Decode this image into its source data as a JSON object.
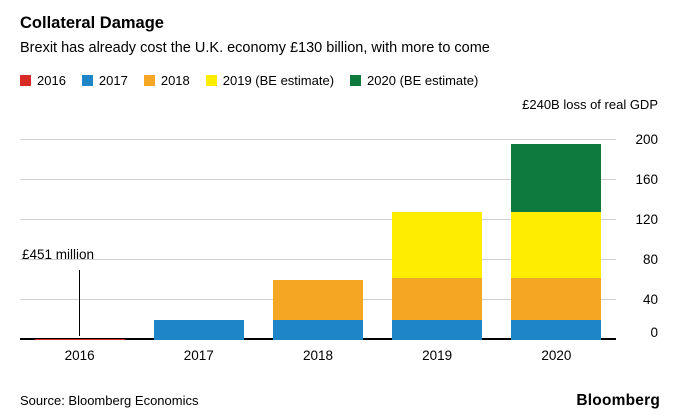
{
  "header": {
    "title": "Collateral Damage",
    "subtitle": "Brexit has already cost the U.K. economy £130 billion, with more to come"
  },
  "annotations": {
    "callout_label": "£451 million"
  },
  "footer": {
    "source": "Source: Bloomberg Economics",
    "logo": "Bloomberg"
  },
  "chart_data": {
    "type": "bar",
    "stacked": true,
    "title": "Collateral Damage",
    "subtitle": "Brexit has already cost the U.K. economy £130 billion, with more to come",
    "categories": [
      "2016",
      "2017",
      "2018",
      "2019",
      "2020"
    ],
    "series": [
      {
        "name": "2016",
        "color": "#d92b26",
        "values": [
          0.451,
          0,
          0,
          0,
          0
        ]
      },
      {
        "name": "2017",
        "color": "#1e86c8",
        "values": [
          0,
          20,
          20,
          20,
          20
        ]
      },
      {
        "name": "2018",
        "color": "#f5a623",
        "values": [
          0,
          0,
          40,
          42,
          42
        ]
      },
      {
        "name": "2019 (BE estimate)",
        "color": "#ffed00",
        "values": [
          0,
          0,
          0,
          66,
          66
        ]
      },
      {
        "name": "2020 (BE estimate)",
        "color": "#0e7a3d",
        "values": [
          0,
          0,
          0,
          0,
          68
        ]
      }
    ],
    "xlabel": "",
    "ylabel": "£240B loss of real GDP",
    "yticks": [
      0,
      40,
      80,
      120,
      160,
      200
    ],
    "ylim": [
      0,
      200
    ],
    "grid": true,
    "legend_position": "top",
    "annotation": "£451 million (2016 value)"
  }
}
